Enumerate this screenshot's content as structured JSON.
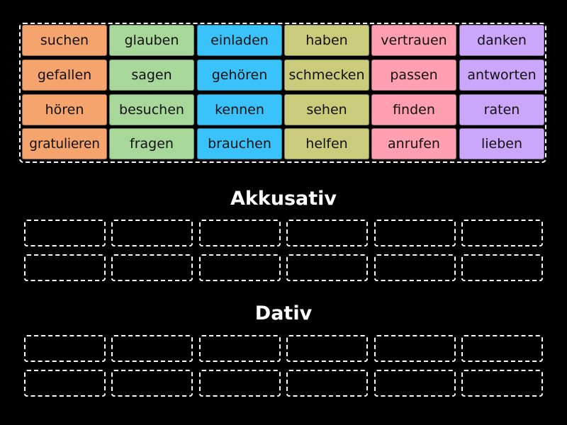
{
  "word_bank": {
    "rows": [
      [
        "suchen",
        "glauben",
        "einladen",
        "haben",
        "vertrauen",
        "danken"
      ],
      [
        "gefallen",
        "sagen",
        "gehören",
        "schmecken",
        "passen",
        "antworten"
      ],
      [
        "hören",
        "besuchen",
        "kennen",
        "sehen",
        "finden",
        "raten"
      ],
      [
        "gratulieren",
        "fragen",
        "brauchen",
        "helfen",
        "anrufen",
        "lieben"
      ]
    ],
    "column_colors": [
      "#f5a46e",
      "#a8d79a",
      "#39c3fa",
      "#cbcb7c",
      "#ff9fb0",
      "#cca6fa"
    ]
  },
  "categories": [
    {
      "title": "Akkusativ"
    },
    {
      "title": "Dativ"
    }
  ]
}
